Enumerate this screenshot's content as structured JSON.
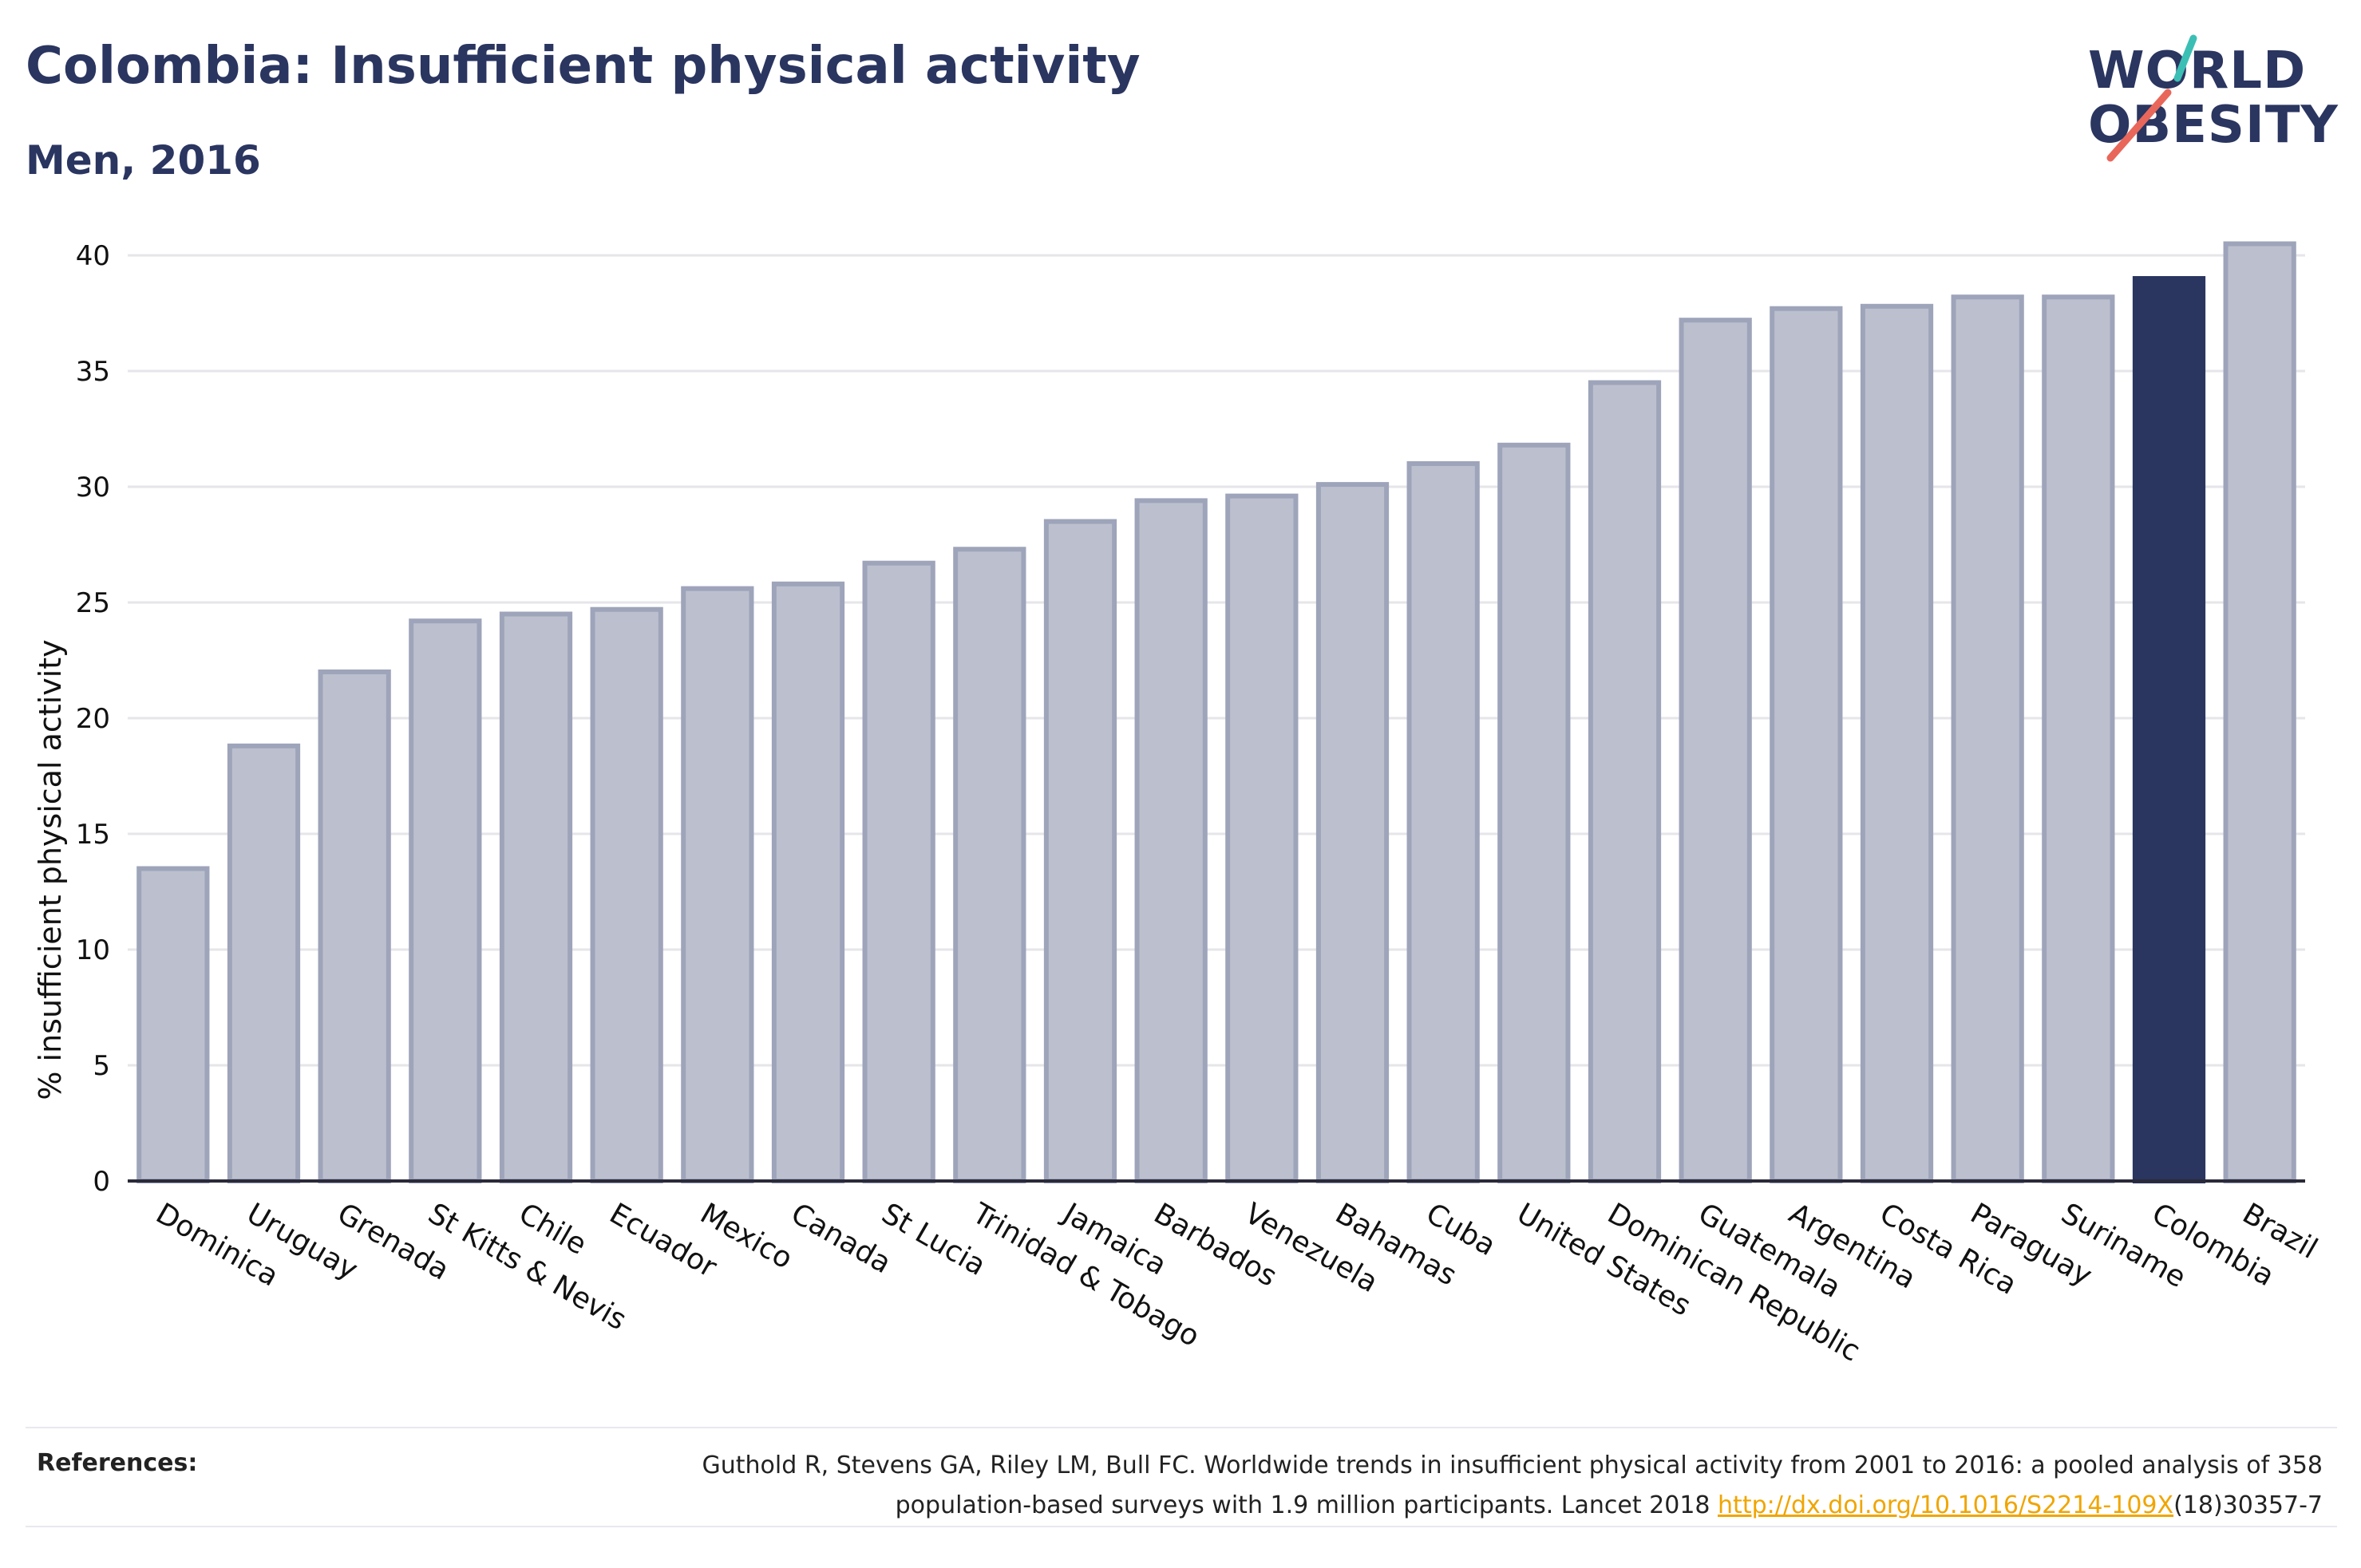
{
  "header": {
    "title": "Colombia: Insufficient physical activity",
    "subtitle": "Men, 2016"
  },
  "logo": {
    "line1": "WORLD",
    "line2": "OBESITY",
    "accent_teal": "#3bbfb5",
    "accent_coral": "#e8675a"
  },
  "chart_data": {
    "type": "bar",
    "ylabel": "% insufficient physical activity",
    "ylim": [
      0,
      40
    ],
    "yticks": [
      0,
      5,
      10,
      15,
      20,
      25,
      30,
      35,
      40
    ],
    "grid": true,
    "categories": [
      "Dominica",
      "Uruguay",
      "Grenada",
      "St Kitts & Nevis",
      "Chile",
      "Ecuador",
      "Mexico",
      "Canada",
      "St Lucia",
      "Trinidad & Tobago",
      "Jamaica",
      "Barbados",
      "Venezuela",
      "Bahamas",
      "Cuba",
      "United States",
      "Dominican Republic",
      "Guatemala",
      "Argentina",
      "Costa Rica",
      "Paraguay",
      "Suriname",
      "Colombia",
      "Brazil"
    ],
    "values": [
      13.5,
      18.8,
      22.0,
      24.2,
      24.5,
      24.7,
      25.6,
      25.8,
      26.7,
      27.3,
      28.5,
      29.4,
      29.6,
      30.1,
      31.0,
      31.8,
      34.5,
      37.2,
      37.7,
      37.8,
      38.2,
      38.2,
      39.0,
      40.5
    ],
    "highlight": "Colombia",
    "colors": {
      "bar_fill": "#bcc0ce",
      "bar_stroke": "#9ea4ba",
      "highlight": "#2a3560",
      "grid": "#e6e6ea",
      "axis": "#2a2a3a"
    }
  },
  "references": {
    "label": "References:",
    "text_line1": "Guthold R, Stevens GA, Riley LM, Bull FC. Worldwide trends in insufficient physical activity from 2001 to 2016: a pooled analysis of 358",
    "text_line2_before": "population-based surveys with 1.9 million participants. Lancet 2018 ",
    "link": "http://dx.doi.org/10.1016/S2214-109X",
    "text_line2_after": "(18)30357-7"
  }
}
